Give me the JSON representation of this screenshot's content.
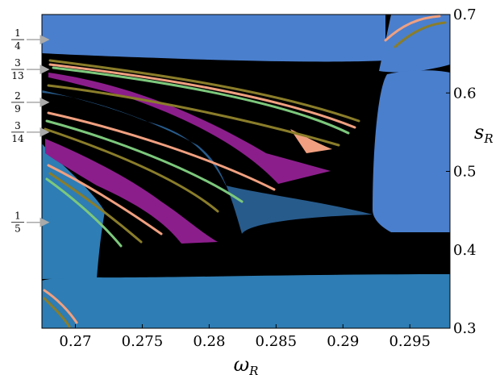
{
  "chart_data": {
    "type": "heatmap",
    "title": "",
    "xlabel": {
      "main": "ω",
      "sub": "R"
    },
    "ylabel": {
      "main": "s",
      "sub": "R"
    },
    "xlim": [
      0.2675,
      0.298
    ],
    "ylim": [
      0.3,
      0.7
    ],
    "xticks": [
      0.27,
      0.275,
      0.28,
      0.285,
      0.29,
      0.295
    ],
    "xtick_labels": [
      "0.27",
      "0.275",
      "0.28",
      "0.285",
      "0.29",
      "0.295"
    ],
    "yticks": [
      0.3,
      0.4,
      0.5,
      0.6,
      0.7
    ],
    "ytick_labels": [
      "0.3",
      "0.4",
      "0.5",
      "0.6",
      "0.7"
    ],
    "grid": false,
    "annotations": [
      {
        "num": "1",
        "den": "4",
        "s": 0.668
      },
      {
        "num": "3",
        "den": "13",
        "s": 0.63
      },
      {
        "num": "2",
        "den": "9",
        "s": 0.588
      },
      {
        "num": "3",
        "den": "14",
        "s": 0.55
      },
      {
        "num": "1",
        "den": "5",
        "s": 0.435
      }
    ],
    "colors": {
      "background": "#000000",
      "band_quarter": "#4a7fcd",
      "band_fifth": "#2e7db4",
      "tongue_3_13": "#8c1e8c",
      "tongue_2_9": "#275b8c",
      "tongue_3_14": "#8c1e8c",
      "tongue_right": "#4a7fcd",
      "fringe_olive": "#8a7d2a",
      "fringe_salmon": "#f0a080",
      "fringe_green": "#7cc87c"
    }
  }
}
